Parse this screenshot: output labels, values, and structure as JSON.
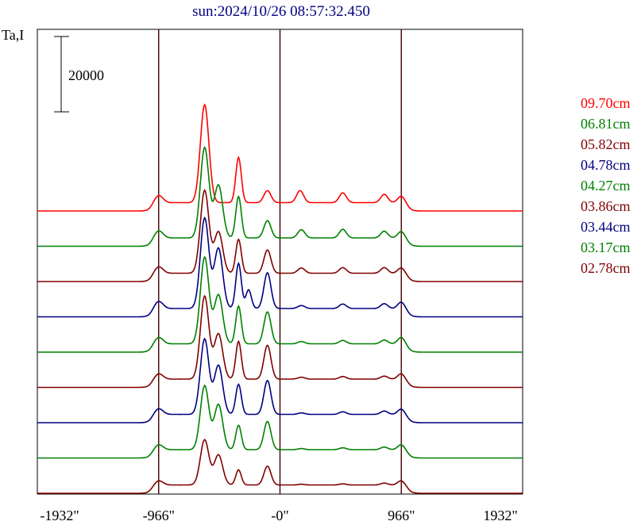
{
  "chart_data": {
    "type": "line",
    "title": "sun:2024/10/26 08:57:32.450",
    "ylabel": "Ta,I",
    "scale_bar_label": "20000",
    "xlim": [
      -1932,
      1932
    ],
    "x_ticks": [
      {
        "value": -1932,
        "label": "-1932\""
      },
      {
        "value": -966,
        "label": "-966\""
      },
      {
        "value": 0,
        "label": "-0\""
      },
      {
        "value": 966,
        "label": "966\""
      },
      {
        "value": 1932,
        "label": "1932\""
      }
    ],
    "vertical_lines": [
      -966,
      0,
      966
    ],
    "grid": false,
    "legend_position": "right",
    "series": [
      {
        "name": "09.70cm",
        "color": "#ff0000",
        "baseline": 8,
        "peaks": [
          [
            -966,
            2000
          ],
          [
            -600,
            26000
          ],
          [
            -330,
            12000
          ],
          [
            -100,
            3200
          ],
          [
            160,
            3200
          ],
          [
            500,
            2600
          ],
          [
            830,
            2200
          ],
          [
            966,
            1800
          ]
        ]
      },
      {
        "name": "06.81cm",
        "color": "#008000",
        "baseline": 7,
        "peaks": [
          [
            -966,
            2000
          ],
          [
            -600,
            24000
          ],
          [
            -490,
            14000
          ],
          [
            -330,
            11000
          ],
          [
            -100,
            4600
          ],
          [
            170,
            2200
          ],
          [
            500,
            2300
          ],
          [
            830,
            1800
          ],
          [
            966,
            1800
          ]
        ]
      },
      {
        "name": "05.82cm",
        "color": "#800000",
        "baseline": 6,
        "peaks": [
          [
            -966,
            1800
          ],
          [
            -600,
            22000
          ],
          [
            -490,
            11000
          ],
          [
            -330,
            9000
          ],
          [
            -100,
            6200
          ],
          [
            170,
            1400
          ],
          [
            500,
            1500
          ],
          [
            830,
            1500
          ],
          [
            966,
            1500
          ]
        ]
      },
      {
        "name": "04.78cm",
        "color": "#000080",
        "baseline": 5,
        "peaks": [
          [
            -966,
            2000
          ],
          [
            -600,
            24000
          ],
          [
            -490,
            16000
          ],
          [
            -330,
            12000
          ],
          [
            -250,
            5000
          ],
          [
            -100,
            9500
          ],
          [
            170,
            800
          ],
          [
            500,
            1200
          ],
          [
            830,
            1300
          ],
          [
            966,
            1800
          ]
        ]
      },
      {
        "name": "04.27cm",
        "color": "#008000",
        "baseline": 4,
        "peaks": [
          [
            -966,
            1800
          ],
          [
            -600,
            23000
          ],
          [
            -490,
            13000
          ],
          [
            -330,
            10000
          ],
          [
            -100,
            8500
          ],
          [
            170,
            600
          ],
          [
            500,
            900
          ],
          [
            830,
            1000
          ],
          [
            966,
            1800
          ]
        ]
      },
      {
        "name": "03.86cm",
        "color": "#800000",
        "baseline": 3,
        "peaks": [
          [
            -966,
            1500
          ],
          [
            -600,
            22000
          ],
          [
            -490,
            12000
          ],
          [
            -330,
            10000
          ],
          [
            -100,
            9000
          ],
          [
            170,
            500
          ],
          [
            500,
            700
          ],
          [
            830,
            800
          ],
          [
            966,
            1500
          ]
        ]
      },
      {
        "name": "03.44cm",
        "color": "#000080",
        "baseline": 2,
        "peaks": [
          [
            -966,
            1600
          ],
          [
            -600,
            20000
          ],
          [
            -490,
            13000
          ],
          [
            -330,
            8000
          ],
          [
            -100,
            9000
          ],
          [
            170,
            400
          ],
          [
            500,
            700
          ],
          [
            830,
            900
          ],
          [
            966,
            1500
          ]
        ]
      },
      {
        "name": "03.17cm",
        "color": "#008000",
        "baseline": 1,
        "peaks": [
          [
            -966,
            1400
          ],
          [
            -600,
            17000
          ],
          [
            -490,
            12000
          ],
          [
            -330,
            6500
          ],
          [
            -100,
            7500
          ],
          [
            170,
            300
          ],
          [
            500,
            500
          ],
          [
            830,
            700
          ],
          [
            966,
            1400
          ]
        ]
      },
      {
        "name": "02.78cm",
        "color": "#800000",
        "baseline": 0,
        "peaks": [
          [
            -966,
            1200
          ],
          [
            -600,
            12000
          ],
          [
            -490,
            8000
          ],
          [
            -330,
            4000
          ],
          [
            -100,
            5000
          ],
          [
            170,
            200
          ],
          [
            500,
            300
          ],
          [
            830,
            500
          ],
          [
            966,
            1200
          ]
        ]
      }
    ]
  }
}
